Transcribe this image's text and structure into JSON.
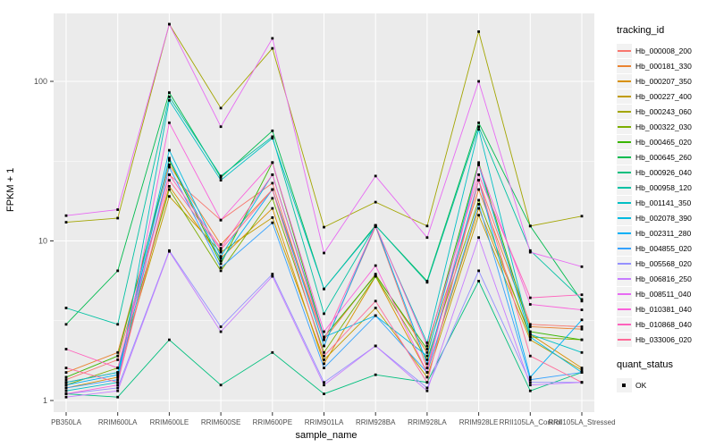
{
  "chart_data": {
    "type": "line",
    "title": "",
    "xlabel": "sample_name",
    "ylabel": "FPKM + 1",
    "y_scale": "log10",
    "y_ticks": [
      1,
      10,
      100
    ],
    "ylim": [
      1,
      270
    ],
    "grid": "on",
    "legend_position": "right",
    "legend_title": "tracking_id",
    "x_categories": [
      "PB350LA",
      "RRIM600LA",
      "RRIM600LE",
      "RRIM600SE",
      "RRIM600PE",
      "RRIM901LA",
      "RRIM928BA",
      "RRIM928LA",
      "RRIM928LE",
      "RRII105LA_Control",
      "RRII105LA_Stressed"
    ],
    "series": [
      {
        "name": "Hb_000008_200",
        "color": "#F8766D",
        "values": [
          1.35,
          1.8,
          26,
          13.5,
          23,
          2.2,
          12.3,
          1.6,
          24,
          3.0,
          2.9
        ]
      },
      {
        "name": "Hb_000181_330",
        "color": "#EA8331",
        "values": [
          1.5,
          2.0,
          30,
          9.5,
          21,
          2.4,
          6.2,
          2.0,
          21,
          2.9,
          2.8
        ]
      },
      {
        "name": "Hb_000207_350",
        "color": "#D89000",
        "values": [
          1.2,
          1.4,
          22,
          7.8,
          16,
          1.7,
          6.0,
          1.5,
          16,
          2.6,
          1.6
        ]
      },
      {
        "name": "Hb_000227_400",
        "color": "#C09B00",
        "values": [
          1.3,
          1.5,
          19,
          8.5,
          14,
          1.8,
          3.8,
          1.4,
          14.5,
          2.4,
          1.55
        ]
      },
      {
        "name": "Hb_000243_060",
        "color": "#A3A500",
        "values": [
          13.1,
          13.9,
          228,
          68,
          161,
          12.2,
          17.5,
          12.4,
          205,
          12.4,
          14.3
        ]
      },
      {
        "name": "Hb_000322_030",
        "color": "#7CAE00",
        "values": [
          1.25,
          1.6,
          21,
          6.5,
          18.5,
          2.0,
          6.0,
          1.8,
          18,
          2.5,
          2.4
        ]
      },
      {
        "name": "Hb_000465_020",
        "color": "#39B600",
        "values": [
          1.4,
          1.9,
          32,
          7.2,
          31,
          2.5,
          6.1,
          2.1,
          31,
          2.7,
          2.4
        ]
      },
      {
        "name": "Hb_000645_260",
        "color": "#00BB4E",
        "values": [
          3.0,
          6.5,
          85,
          25,
          49,
          5.0,
          12.5,
          5.6,
          55,
          12.4,
          4.2
        ]
      },
      {
        "name": "Hb_000926_040",
        "color": "#00BF7D",
        "values": [
          1.1,
          1.05,
          2.4,
          1.25,
          2.0,
          1.1,
          1.45,
          1.3,
          5.6,
          1.15,
          1.5
        ]
      },
      {
        "name": "Hb_000958_120",
        "color": "#00C1A3",
        "values": [
          3.8,
          3.0,
          80,
          25.5,
          45,
          3.5,
          12.5,
          5.5,
          52,
          8.7,
          4.3
        ]
      },
      {
        "name": "Hb_001141_350",
        "color": "#00BFC4",
        "values": [
          1.15,
          1.3,
          76,
          24,
          44,
          5.0,
          12.3,
          2.3,
          50,
          2.6,
          2.0
        ]
      },
      {
        "name": "Hb_002078_390",
        "color": "#00BAE0",
        "values": [
          1.3,
          1.5,
          37,
          8.0,
          26,
          2.5,
          3.4,
          1.9,
          30,
          2.5,
          1.5
        ]
      },
      {
        "name": "Hb_002311_280",
        "color": "#00B0F6",
        "values": [
          1.25,
          1.45,
          33,
          7.5,
          21,
          2.2,
          12.5,
          1.7,
          24,
          1.4,
          3.2
        ]
      },
      {
        "name": "Hb_004855_020",
        "color": "#35A2FF",
        "values": [
          1.2,
          1.35,
          29,
          6.8,
          13,
          1.6,
          3.4,
          1.5,
          17,
          1.35,
          1.5
        ]
      },
      {
        "name": "Hb_005568_020",
        "color": "#9590FF",
        "values": [
          1.1,
          1.2,
          8.7,
          2.9,
          6.2,
          1.3,
          2.2,
          1.2,
          6.5,
          1.3,
          1.3
        ]
      },
      {
        "name": "Hb_006816_250",
        "color": "#C77CFF",
        "values": [
          1.05,
          1.15,
          8.6,
          2.7,
          6.0,
          1.25,
          2.2,
          1.15,
          10.5,
          1.25,
          1.3
        ]
      },
      {
        "name": "Hb_008511_040",
        "color": "#E76BF3",
        "values": [
          14.4,
          15.7,
          228,
          52,
          186,
          8.4,
          25.5,
          10.5,
          100,
          8.5,
          6.9
        ]
      },
      {
        "name": "Hb_010381_040",
        "color": "#FA62DB",
        "values": [
          1.1,
          1.25,
          55,
          13.5,
          31,
          2.7,
          7.0,
          1.5,
          30,
          4.0,
          3.7
        ]
      },
      {
        "name": "Hb_010868_040",
        "color": "#FF62BC",
        "values": [
          2.1,
          1.6,
          26,
          9.0,
          26,
          2.4,
          12.5,
          2.2,
          26,
          4.4,
          4.6
        ]
      },
      {
        "name": "Hb_033006_020",
        "color": "#FF6A98",
        "values": [
          1.6,
          1.3,
          24,
          8.8,
          21,
          1.9,
          4.2,
          1.3,
          24,
          1.9,
          1.3
        ]
      }
    ],
    "quant_legend": {
      "title": "quant_status",
      "items": [
        {
          "label": "OK",
          "marker_color": "#000000"
        }
      ]
    },
    "panel_bg": "#EBEBEB",
    "gridline_color": "#FFFFFF",
    "point_color": "#000000"
  }
}
